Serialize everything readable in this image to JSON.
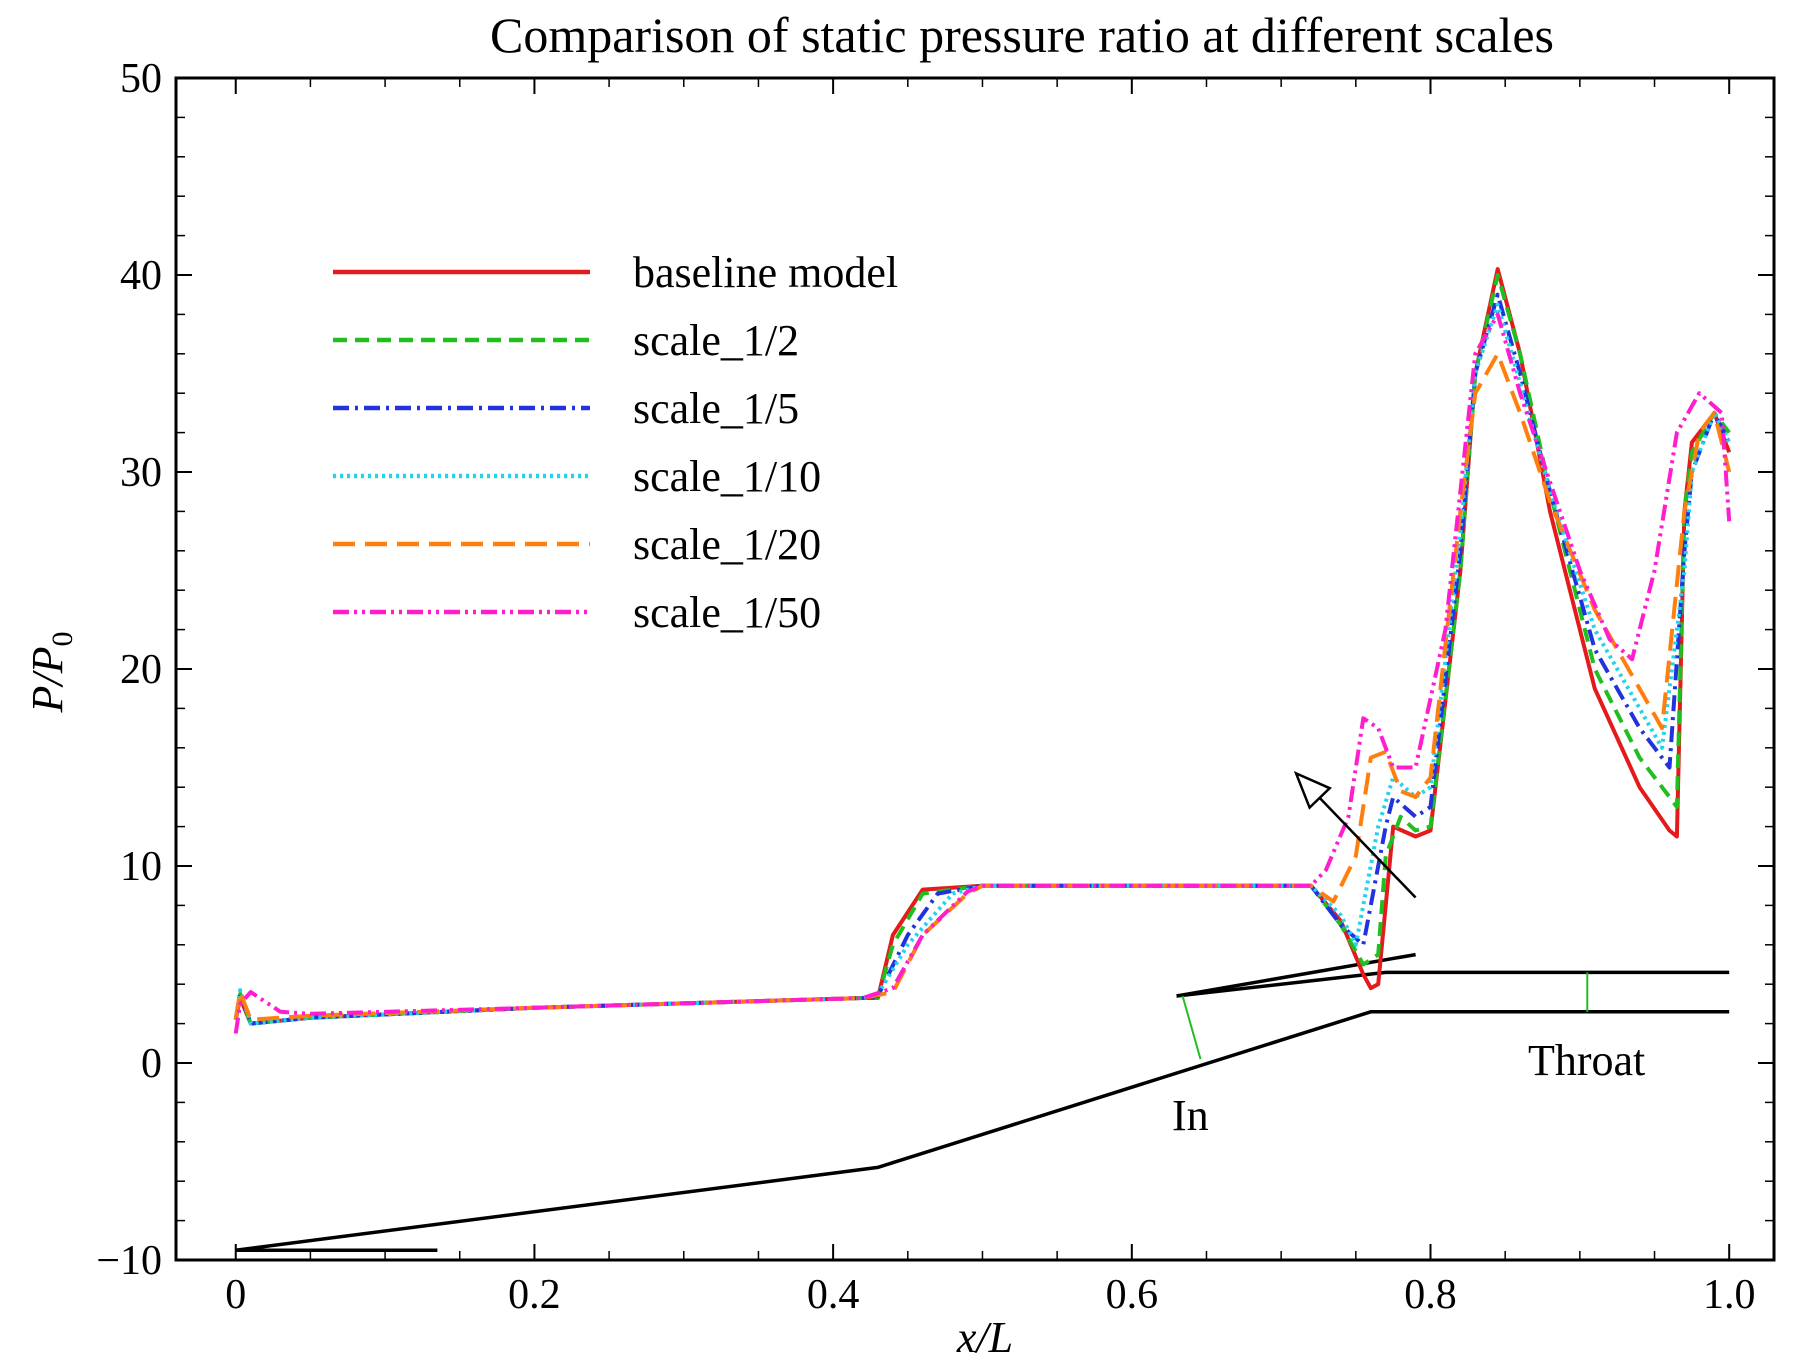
{
  "chart_data": {
    "type": "line",
    "title": "Comparison of static pressure ratio at different scales",
    "xlabel": "x/L",
    "ylabel": "P/P0",
    "xlim": [
      -0.04,
      1.03
    ],
    "ylim": [
      -10,
      50
    ],
    "x_ticks": [
      0,
      0.2,
      0.4,
      0.6,
      0.8,
      1.0
    ],
    "x_tick_labels": [
      "0",
      "0.2",
      "0.4",
      "0.6",
      "0.8",
      "1.0"
    ],
    "y_ticks": [
      -10,
      0,
      10,
      20,
      30,
      40,
      50
    ],
    "y_tick_labels": [
      "−10",
      "0",
      "10",
      "20",
      "30",
      "40",
      "50"
    ],
    "grid": false,
    "legend_position": "upper-left",
    "series": [
      {
        "name": "baseline model",
        "color": "#e41a1c",
        "dash": "solid",
        "points": [
          [
            0,
            2.2
          ],
          [
            0.003,
            3.3
          ],
          [
            0.01,
            2.0
          ],
          [
            0.05,
            2.3
          ],
          [
            0.2,
            2.8
          ],
          [
            0.42,
            3.3
          ],
          [
            0.43,
            3.3
          ],
          [
            0.44,
            6.5
          ],
          [
            0.46,
            8.8
          ],
          [
            0.5,
            9.0
          ],
          [
            0.6,
            9.0
          ],
          [
            0.72,
            9.0
          ],
          [
            0.74,
            7.2
          ],
          [
            0.755,
            4.5
          ],
          [
            0.76,
            3.8
          ],
          [
            0.765,
            4.0
          ],
          [
            0.77,
            8.0
          ],
          [
            0.775,
            12.0
          ],
          [
            0.79,
            11.5
          ],
          [
            0.8,
            11.8
          ],
          [
            0.82,
            25.0
          ],
          [
            0.83,
            35.0
          ],
          [
            0.845,
            40.3
          ],
          [
            0.86,
            36.0
          ],
          [
            0.88,
            28.0
          ],
          [
            0.91,
            19.0
          ],
          [
            0.94,
            14.0
          ],
          [
            0.96,
            11.8
          ],
          [
            0.965,
            11.5
          ],
          [
            0.97,
            28.0
          ],
          [
            0.975,
            31.5
          ],
          [
            0.99,
            33.0
          ],
          [
            1.0,
            31.0
          ]
        ]
      },
      {
        "name": "scale_1/2",
        "color": "#1fbf1f",
        "dash": "14 8",
        "points": [
          [
            0,
            2.2
          ],
          [
            0.003,
            3.5
          ],
          [
            0.01,
            2.0
          ],
          [
            0.05,
            2.3
          ],
          [
            0.2,
            2.8
          ],
          [
            0.42,
            3.3
          ],
          [
            0.43,
            3.3
          ],
          [
            0.44,
            6.0
          ],
          [
            0.46,
            8.6
          ],
          [
            0.5,
            9.0
          ],
          [
            0.6,
            9.0
          ],
          [
            0.72,
            9.0
          ],
          [
            0.74,
            7.0
          ],
          [
            0.755,
            5.0
          ],
          [
            0.765,
            5.5
          ],
          [
            0.77,
            10.5
          ],
          [
            0.78,
            12.5
          ],
          [
            0.79,
            11.8
          ],
          [
            0.8,
            12.0
          ],
          [
            0.82,
            25.0
          ],
          [
            0.83,
            35.0
          ],
          [
            0.845,
            40.0
          ],
          [
            0.86,
            36.0
          ],
          [
            0.88,
            29.0
          ],
          [
            0.91,
            20.0
          ],
          [
            0.94,
            15.5
          ],
          [
            0.96,
            13.5
          ],
          [
            0.965,
            13.0
          ],
          [
            0.97,
            28.0
          ],
          [
            0.975,
            31.0
          ],
          [
            0.99,
            33.0
          ],
          [
            1.0,
            32.0
          ]
        ]
      },
      {
        "name": "scale_1/5",
        "color": "#2233dd",
        "dash": "16 6 3 6",
        "points": [
          [
            0,
            2.2
          ],
          [
            0.003,
            3.6
          ],
          [
            0.01,
            2.0
          ],
          [
            0.05,
            2.3
          ],
          [
            0.2,
            2.8
          ],
          [
            0.42,
            3.3
          ],
          [
            0.43,
            3.4
          ],
          [
            0.45,
            6.5
          ],
          [
            0.47,
            8.6
          ],
          [
            0.5,
            9.0
          ],
          [
            0.6,
            9.0
          ],
          [
            0.72,
            9.0
          ],
          [
            0.74,
            7.0
          ],
          [
            0.755,
            6.0
          ],
          [
            0.77,
            12.0
          ],
          [
            0.775,
            13.5
          ],
          [
            0.79,
            12.5
          ],
          [
            0.8,
            13.0
          ],
          [
            0.82,
            26.0
          ],
          [
            0.83,
            35.0
          ],
          [
            0.845,
            39.0
          ],
          [
            0.86,
            35.0
          ],
          [
            0.88,
            29.0
          ],
          [
            0.91,
            21.0
          ],
          [
            0.94,
            17.0
          ],
          [
            0.96,
            15.0
          ],
          [
            0.97,
            26.0
          ],
          [
            0.975,
            30.0
          ],
          [
            0.99,
            33.0
          ],
          [
            1.0,
            31.5
          ]
        ]
      },
      {
        "name": "scale_1/10",
        "color": "#22d3ee",
        "dash": "3 4",
        "points": [
          [
            0,
            2.2
          ],
          [
            0.003,
            3.7
          ],
          [
            0.01,
            2.0
          ],
          [
            0.05,
            2.3
          ],
          [
            0.2,
            2.8
          ],
          [
            0.42,
            3.3
          ],
          [
            0.43,
            3.5
          ],
          [
            0.45,
            6.0
          ],
          [
            0.48,
            8.6
          ],
          [
            0.5,
            9.0
          ],
          [
            0.6,
            9.0
          ],
          [
            0.72,
            9.0
          ],
          [
            0.74,
            7.5
          ],
          [
            0.75,
            6.0
          ],
          [
            0.765,
            12.0
          ],
          [
            0.775,
            14.5
          ],
          [
            0.79,
            13.5
          ],
          [
            0.8,
            14.0
          ],
          [
            0.82,
            27.0
          ],
          [
            0.83,
            35.0
          ],
          [
            0.845,
            38.5
          ],
          [
            0.86,
            34.5
          ],
          [
            0.88,
            29.0
          ],
          [
            0.91,
            22.0
          ],
          [
            0.94,
            18.0
          ],
          [
            0.955,
            16.0
          ],
          [
            0.97,
            25.0
          ],
          [
            0.975,
            30.0
          ],
          [
            0.99,
            33.0
          ],
          [
            1.0,
            31.5
          ]
        ]
      },
      {
        "name": "scale_1/20",
        "color": "#ff7f0e",
        "dash": "22 10",
        "points": [
          [
            0,
            2.2
          ],
          [
            0.003,
            3.6
          ],
          [
            0.01,
            2.2
          ],
          [
            0.05,
            2.4
          ],
          [
            0.2,
            2.8
          ],
          [
            0.42,
            3.3
          ],
          [
            0.44,
            3.6
          ],
          [
            0.46,
            6.5
          ],
          [
            0.49,
            8.6
          ],
          [
            0.5,
            9.0
          ],
          [
            0.6,
            9.0
          ],
          [
            0.72,
            9.0
          ],
          [
            0.735,
            8.2
          ],
          [
            0.75,
            10.5
          ],
          [
            0.76,
            15.5
          ],
          [
            0.77,
            15.8
          ],
          [
            0.78,
            13.8
          ],
          [
            0.79,
            13.5
          ],
          [
            0.8,
            14.5
          ],
          [
            0.82,
            28.0
          ],
          [
            0.83,
            34.0
          ],
          [
            0.845,
            36.0
          ],
          [
            0.86,
            33.0
          ],
          [
            0.88,
            28.5
          ],
          [
            0.91,
            23.0
          ],
          [
            0.94,
            19.0
          ],
          [
            0.955,
            17.0
          ],
          [
            0.97,
            28.0
          ],
          [
            0.98,
            32.0
          ],
          [
            0.99,
            33.0
          ],
          [
            1.0,
            30.0
          ]
        ]
      },
      {
        "name": "scale_1/50",
        "color": "#ff1dce",
        "dash": "16 5 3 5 3 5",
        "points": [
          [
            0,
            1.5
          ],
          [
            0.003,
            3.0
          ],
          [
            0.01,
            3.6
          ],
          [
            0.03,
            2.6
          ],
          [
            0.05,
            2.5
          ],
          [
            0.2,
            2.8
          ],
          [
            0.42,
            3.3
          ],
          [
            0.44,
            3.8
          ],
          [
            0.46,
            6.5
          ],
          [
            0.49,
            8.7
          ],
          [
            0.5,
            9.0
          ],
          [
            0.6,
            9.0
          ],
          [
            0.72,
            9.0
          ],
          [
            0.73,
            9.8
          ],
          [
            0.745,
            12.5
          ],
          [
            0.755,
            17.5
          ],
          [
            0.765,
            17.0
          ],
          [
            0.775,
            15.0
          ],
          [
            0.79,
            15.0
          ],
          [
            0.81,
            22.0
          ],
          [
            0.83,
            36.0
          ],
          [
            0.845,
            38.0
          ],
          [
            0.86,
            34.0
          ],
          [
            0.88,
            29.5
          ],
          [
            0.9,
            25.0
          ],
          [
            0.92,
            21.5
          ],
          [
            0.935,
            20.5
          ],
          [
            0.95,
            25.0
          ],
          [
            0.965,
            32.0
          ],
          [
            0.98,
            34.0
          ],
          [
            0.995,
            33.0
          ],
          [
            1.0,
            27.5
          ]
        ]
      }
    ],
    "annotations": {
      "in_label": "In",
      "throat_label": "Throat",
      "geometry": {
        "lower_wall": [
          [
            0,
            -9.5
          ],
          [
            0.43,
            -5.3
          ],
          [
            0.76,
            2.6
          ],
          [
            1.0,
            2.6
          ]
        ],
        "upper_wall": [
          [
            0.63,
            3.4
          ],
          [
            0.77,
            4.6
          ],
          [
            1.0,
            4.6
          ]
        ],
        "cowl_lip": [
          [
            0.63,
            3.4
          ],
          [
            0.79,
            5.5
          ]
        ],
        "base_plate": [
          [
            0,
            -9.5
          ],
          [
            0.135,
            -9.5
          ]
        ],
        "in_line": [
          [
            0.634,
            3.4
          ],
          [
            0.646,
            0.2
          ]
        ],
        "throat_line": [
          [
            0.905,
            4.6
          ],
          [
            0.905,
            2.6
          ]
        ],
        "arrow_tail": [
          0.79,
          8.4
        ],
        "arrow_head": [
          0.71,
          14.7
        ]
      }
    }
  }
}
